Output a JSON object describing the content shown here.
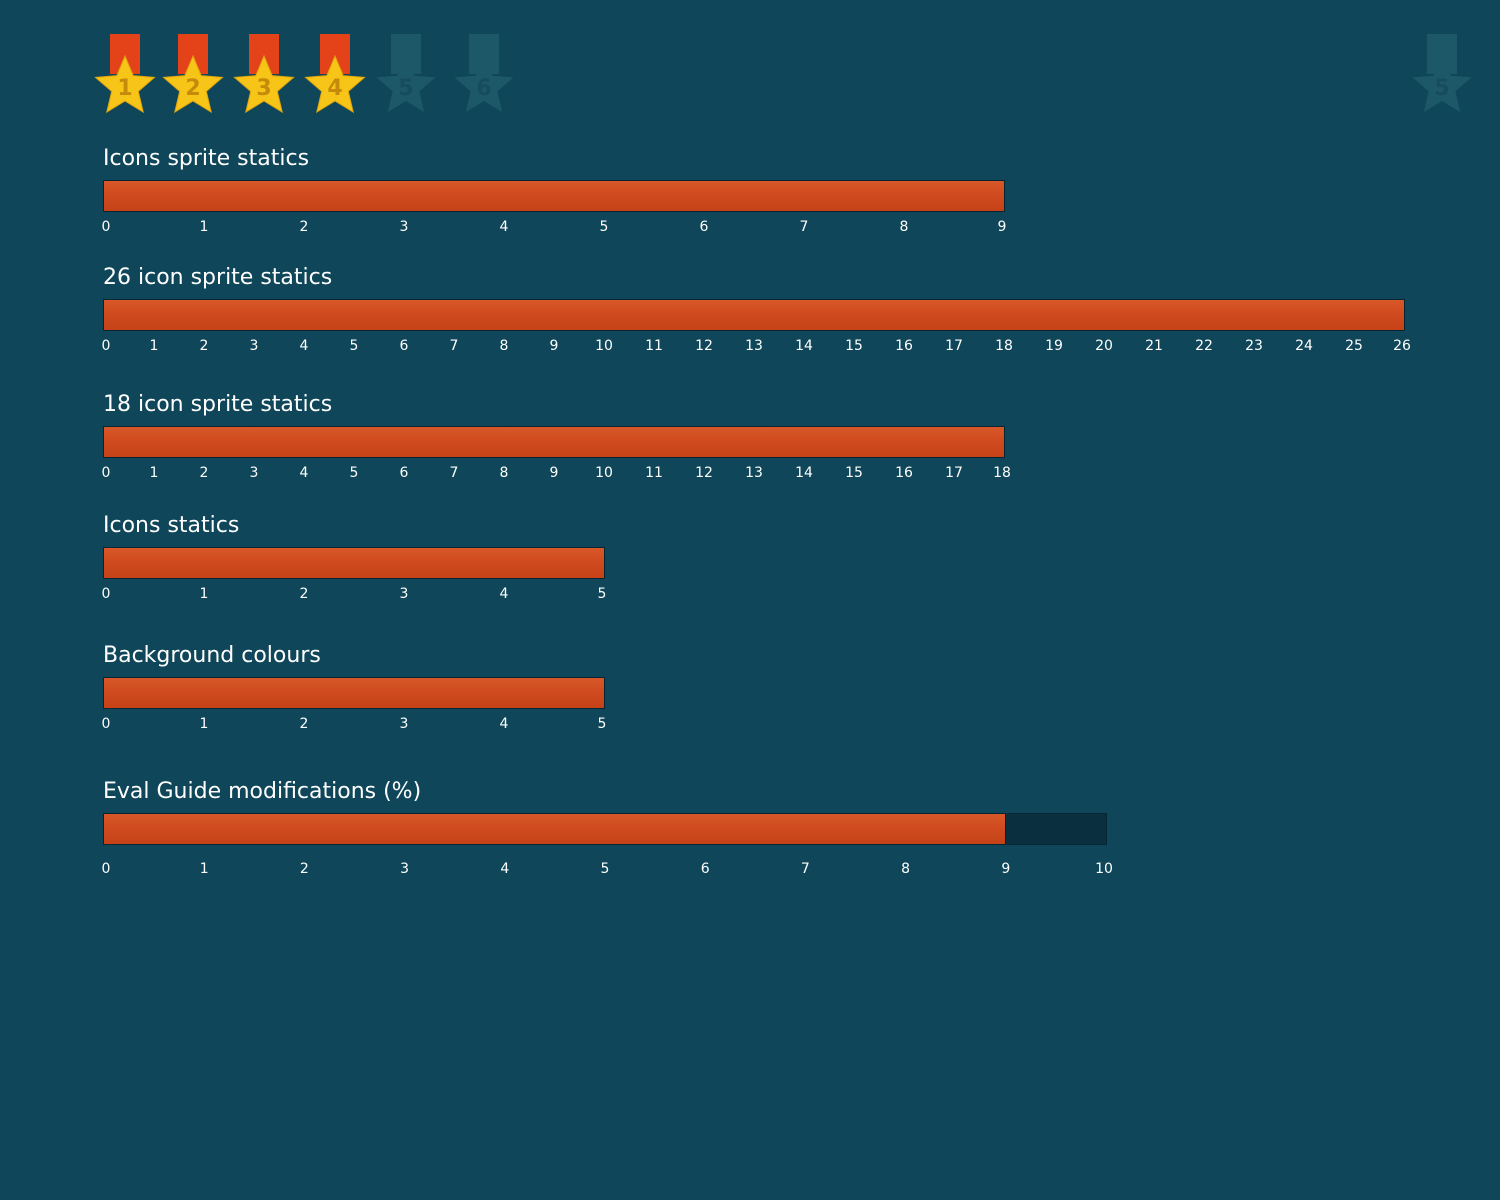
{
  "colors": {
    "background": "#0f4659",
    "bar_fill": "#cf4a1e",
    "bar_track": "#0a2f3f",
    "medal_gold": "#f7c518",
    "medal_ribbon": "#e4431a",
    "medal_inactive": "#1d5868"
  },
  "medals": [
    {
      "number": "1",
      "active": true,
      "icon": "star-medal-icon"
    },
    {
      "number": "2",
      "active": true,
      "icon": "star-medal-icon"
    },
    {
      "number": "3",
      "active": true,
      "icon": "star-medal-icon"
    },
    {
      "number": "4",
      "active": true,
      "icon": "star-medal-icon"
    },
    {
      "number": "5",
      "active": false,
      "icon": "star-medal-icon"
    },
    {
      "number": "6",
      "active": false,
      "icon": "star-medal-icon"
    },
    {
      "number": "5",
      "active": false,
      "icon": "star-medal-icon"
    }
  ],
  "chart_data": [
    {
      "type": "bar",
      "title": "Icons sprite statics",
      "value": 9,
      "max": 9,
      "ticks": [
        "0",
        "1",
        "2",
        "3",
        "4",
        "5",
        "6",
        "7",
        "8",
        "9"
      ]
    },
    {
      "type": "bar",
      "title": "26 icon sprite statics",
      "value": 26,
      "max": 26,
      "ticks": [
        "0",
        "1",
        "2",
        "3",
        "4",
        "5",
        "6",
        "7",
        "8",
        "9",
        "10",
        "11",
        "12",
        "13",
        "14",
        "15",
        "16",
        "17",
        "18",
        "19",
        "20",
        "21",
        "22",
        "23",
        "24",
        "25",
        "26"
      ]
    },
    {
      "type": "bar",
      "title": "18 icon sprite statics",
      "value": 18,
      "max": 18,
      "ticks": [
        "0",
        "1",
        "2",
        "3",
        "4",
        "5",
        "6",
        "7",
        "8",
        "9",
        "10",
        "11",
        "12",
        "13",
        "14",
        "15",
        "16",
        "17",
        "18"
      ]
    },
    {
      "type": "bar",
      "title": "Icons statics",
      "value": 5,
      "max": 5,
      "ticks": [
        "0",
        "1",
        "2",
        "3",
        "4",
        "5"
      ]
    },
    {
      "type": "bar",
      "title": "Background colours",
      "value": 5,
      "max": 5,
      "ticks": [
        "0",
        "1",
        "2",
        "3",
        "4",
        "5"
      ]
    },
    {
      "type": "bar",
      "title": "Eval Guide modifications (%)",
      "value": 9,
      "max": 10,
      "ticks": [
        "0",
        "1",
        "2",
        "3",
        "4",
        "5",
        "6",
        "7",
        "8",
        "9",
        "10"
      ]
    }
  ]
}
